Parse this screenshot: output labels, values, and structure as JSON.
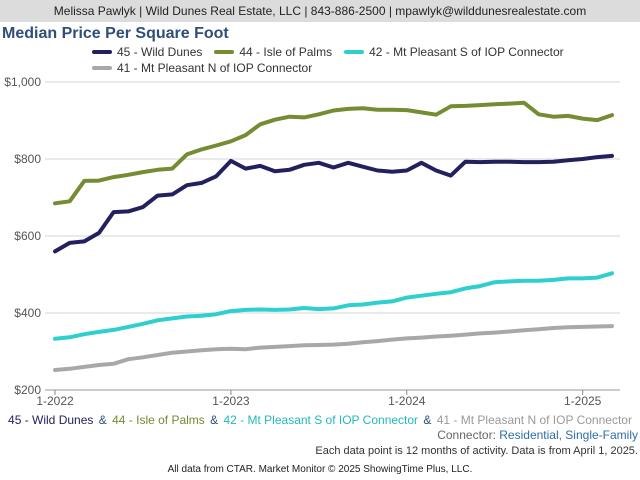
{
  "header": {
    "contact": "Melissa Pawlyk | Wild Dunes Real Estate, LLC | 843-886-2500 | mpawlyk@wilddunesrealestate.com"
  },
  "chart_data": {
    "type": "line",
    "title": "Median Price Per Square Foot",
    "x_ticks": [
      "1-2022",
      "1-2023",
      "1-2024",
      "1-2025"
    ],
    "y_ticks": [
      "$200",
      "$400",
      "$600",
      "$800",
      "$1,000"
    ],
    "ylim": [
      200,
      1000
    ],
    "grid": "horizontal",
    "legend_position": "top",
    "x": [
      "2022-01",
      "2022-02",
      "2022-03",
      "2022-04",
      "2022-05",
      "2022-06",
      "2022-07",
      "2022-08",
      "2022-09",
      "2022-10",
      "2022-11",
      "2022-12",
      "2023-01",
      "2023-02",
      "2023-03",
      "2023-04",
      "2023-05",
      "2023-06",
      "2023-07",
      "2023-08",
      "2023-09",
      "2023-10",
      "2023-11",
      "2023-12",
      "2024-01",
      "2024-02",
      "2024-03",
      "2024-04",
      "2024-05",
      "2024-06",
      "2024-07",
      "2024-08",
      "2024-09",
      "2024-10",
      "2024-11",
      "2024-12",
      "2025-01",
      "2025-02",
      "2025-03"
    ],
    "series": [
      {
        "name": "45 - Wild Dunes",
        "color": "#22215e",
        "values": [
          560,
          582,
          586,
          608,
          662,
          664,
          675,
          705,
          708,
          732,
          738,
          755,
          795,
          775,
          782,
          768,
          772,
          785,
          790,
          778,
          790,
          780,
          770,
          767,
          770,
          790,
          770,
          757,
          793,
          792,
          793,
          793,
          792,
          792,
          793,
          797,
          800,
          805,
          808
        ]
      },
      {
        "name": "44 - Isle of Palms",
        "color": "#748c32",
        "values": [
          685,
          690,
          743,
          744,
          753,
          759,
          766,
          772,
          775,
          812,
          825,
          835,
          846,
          862,
          890,
          902,
          910,
          908,
          916,
          926,
          930,
          932,
          928,
          928,
          927,
          921,
          915,
          937,
          938,
          940,
          942,
          944,
          946,
          916,
          910,
          912,
          905,
          901,
          914
        ]
      },
      {
        "name": "42 - Mt Pleasant S of IOP Connector",
        "color": "#2ecfce",
        "values": [
          333,
          337,
          345,
          351,
          356,
          364,
          372,
          381,
          386,
          391,
          393,
          397,
          405,
          408,
          409,
          408,
          409,
          413,
          410,
          412,
          420,
          422,
          427,
          430,
          440,
          445,
          450,
          454,
          464,
          470,
          480,
          482,
          484,
          484,
          486,
          490,
          490,
          492,
          503
        ]
      },
      {
        "name": "41 - Mt Pleasant N of IOP Connector",
        "color": "#a8a8a8",
        "values": [
          252,
          255,
          260,
          265,
          268,
          280,
          285,
          291,
          297,
          300,
          303,
          306,
          307,
          306,
          310,
          312,
          314,
          316,
          317,
          318,
          320,
          324,
          327,
          331,
          334,
          336,
          339,
          341,
          344,
          347,
          349,
          352,
          355,
          358,
          361,
          363,
          364,
          365,
          366
        ]
      }
    ]
  },
  "caption": {
    "series_1": "45 - Wild Dunes",
    "series_2": "44 - Isle of Palms",
    "series_3": "42 - Mt Pleasant S of IOP Connector",
    "series_4": "41 - Mt Pleasant N of IOP Connector",
    "separator": "&"
  },
  "filter": {
    "label": "Connector:",
    "value": "Residential, Single-Family"
  },
  "note": "Each data point is 12 months of activity. Data is from April 1, 2025.",
  "footer": "All data from CTAR. Market Monitor © 2025 ShowingTime Plus, LLC."
}
